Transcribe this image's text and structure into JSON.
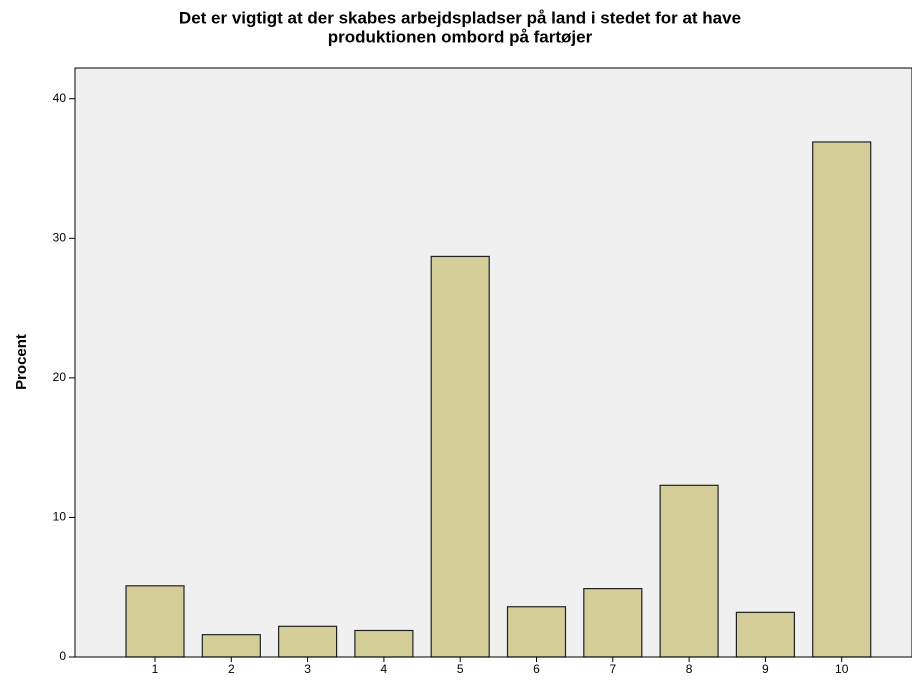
{
  "chart_data": {
    "type": "bar",
    "title": [
      "Det er vigtigt at der skabes arbejdspladser på land i stedet for at have",
      "produktionen ombord på fartøjer"
    ],
    "ylabel": "Procent",
    "categories": [
      "1",
      "2",
      "3",
      "4",
      "5",
      "6",
      "7",
      "8",
      "9",
      "10"
    ],
    "values": [
      5.1,
      1.6,
      2.2,
      1.9,
      28.7,
      3.6,
      4.9,
      12.3,
      3.2,
      36.9
    ],
    "color": "#d3ce97",
    "ylim": [
      0,
      42.2
    ],
    "yticks": [
      0,
      10,
      20,
      30,
      40
    ],
    "grid": false
  }
}
